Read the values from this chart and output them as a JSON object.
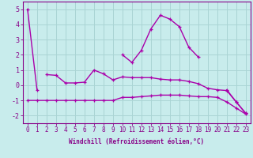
{
  "xlabel": "Windchill (Refroidissement éolien,°C)",
  "background_color": "#c8ecec",
  "grid_color": "#aad4d4",
  "line_color": "#aa00aa",
  "x_hours": [
    0,
    1,
    2,
    3,
    4,
    5,
    6,
    7,
    8,
    9,
    10,
    11,
    12,
    13,
    14,
    15,
    16,
    17,
    18,
    19,
    20,
    21,
    22,
    23
  ],
  "line1_y": [
    5.0,
    -0.3,
    null,
    null,
    null,
    null,
    null,
    null,
    null,
    null,
    2.0,
    1.5,
    2.3,
    3.7,
    4.6,
    4.35,
    3.85,
    2.5,
    1.85,
    null,
    null,
    -0.3,
    -1.1,
    -1.85
  ],
  "line2_y": [
    null,
    null,
    0.7,
    0.65,
    0.15,
    0.15,
    0.2,
    1.0,
    0.75,
    0.35,
    0.55,
    0.5,
    0.5,
    0.5,
    0.4,
    0.35,
    0.35,
    0.25,
    0.1,
    -0.2,
    -0.3,
    -0.35,
    -1.1,
    -1.85
  ],
  "line3_y": [
    -1.0,
    -1.0,
    -1.0,
    -1.0,
    -1.0,
    -1.0,
    -1.0,
    -1.0,
    -1.0,
    -1.0,
    -0.8,
    -0.8,
    -0.75,
    -0.7,
    -0.65,
    -0.65,
    -0.65,
    -0.7,
    -0.75,
    -0.75,
    -0.8,
    -1.1,
    -1.5,
    -1.9
  ],
  "ylim": [
    -2.5,
    5.5
  ],
  "xlim": [
    -0.5,
    23.5
  ],
  "yticks": [
    -2,
    -1,
    0,
    1,
    2,
    3,
    4,
    5
  ],
  "xticks": [
    0,
    1,
    2,
    3,
    4,
    5,
    6,
    7,
    8,
    9,
    10,
    11,
    12,
    13,
    14,
    15,
    16,
    17,
    18,
    19,
    20,
    21,
    22,
    23
  ],
  "tick_fontsize": 5.5,
  "xlabel_fontsize": 5.5
}
